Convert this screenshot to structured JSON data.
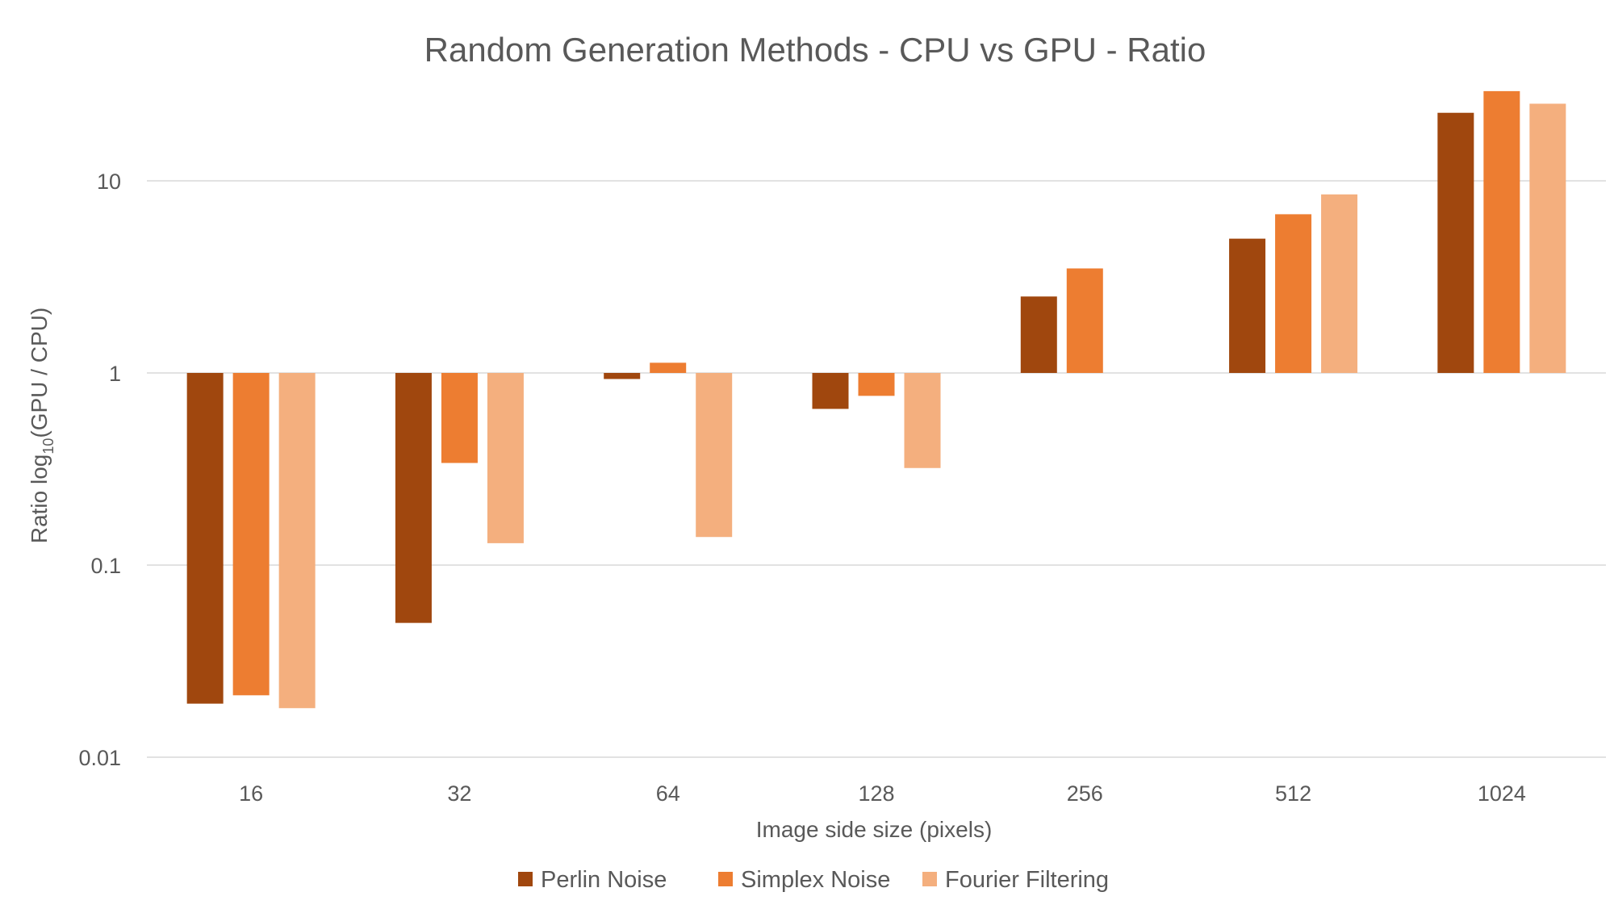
{
  "chart_data": {
    "type": "bar",
    "title": "Random Generation Methods - CPU vs GPU - Ratio",
    "xlabel": "Image side size (pixels)",
    "ylabel_main": "Ratio log",
    "ylabel_sub": "10",
    "ylabel_tail": "(GPU / CPU)",
    "scale": "log10",
    "baseline": 1,
    "ylim": [
      0.01,
      33
    ],
    "yticks": [
      {
        "value": 0.01,
        "label": "0.01"
      },
      {
        "value": 0.1,
        "label": "0.1"
      },
      {
        "value": 1,
        "label": "1"
      },
      {
        "value": 10,
        "label": "10"
      }
    ],
    "grid": true,
    "legend_position": "bottom",
    "categories": [
      "16",
      "32",
      "64",
      "128",
      "256",
      "512",
      "1024"
    ],
    "series": [
      {
        "name": "Perlin Noise",
        "color": "#A0470E",
        "values": [
          0.019,
          0.05,
          0.93,
          0.65,
          2.5,
          5.0,
          22.6
        ]
      },
      {
        "name": "Simplex Noise",
        "color": "#ED7D31",
        "values": [
          0.021,
          0.34,
          1.13,
          0.76,
          3.5,
          6.7,
          29.3
        ]
      },
      {
        "name": "Fourier Filtering",
        "color": "#F4AF7E",
        "values": [
          0.018,
          0.13,
          0.14,
          0.32,
          null,
          8.5,
          25.2
        ]
      }
    ]
  }
}
